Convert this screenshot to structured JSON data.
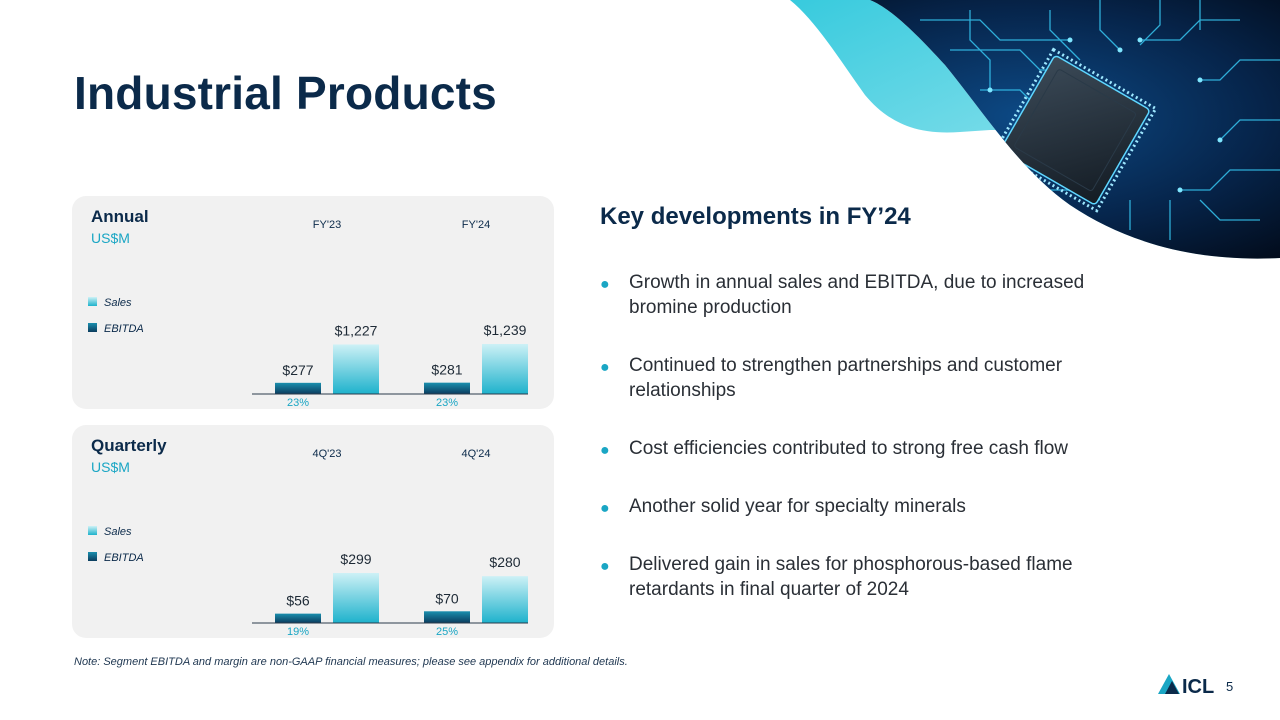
{
  "title": "Industrial Products",
  "hero_image": "circuit-board-chip-image",
  "colors": {
    "navy": "#0b2a4a",
    "accent": "#1aa6c4",
    "sales_top": "#cdf1f6",
    "sales_bottom": "#1eb2cc",
    "ebitda_top": "#1a8fae",
    "ebitda_bottom": "#0b3c5e",
    "panel_bg": "#f1f1f1"
  },
  "chart_data": [
    {
      "type": "bar",
      "title": "Annual",
      "unit": "US$M",
      "categories": [
        "FY'23",
        "FY'24"
      ],
      "series": [
        {
          "name": "EBITDA",
          "values": [
            277,
            281
          ],
          "labels": [
            "$277",
            "$281"
          ]
        },
        {
          "name": "Sales",
          "values": [
            1227,
            1239
          ],
          "labels": [
            "$1,227",
            "$1,239"
          ]
        }
      ],
      "margins": [
        "23%",
        "23%"
      ],
      "ylim": [
        0,
        1239
      ],
      "legend": [
        "Sales",
        "EBITDA"
      ],
      "legend_position": "left"
    },
    {
      "type": "bar",
      "title": "Quarterly",
      "unit": "US$M",
      "categories": [
        "4Q'23",
        "4Q'24"
      ],
      "series": [
        {
          "name": "EBITDA",
          "values": [
            56,
            70
          ],
          "labels": [
            "$56",
            "$70"
          ]
        },
        {
          "name": "Sales",
          "values": [
            299,
            280
          ],
          "labels": [
            "$299",
            "$280"
          ]
        }
      ],
      "margins": [
        "19%",
        "25%"
      ],
      "ylim": [
        0,
        299
      ],
      "legend": [
        "Sales",
        "EBITDA"
      ],
      "legend_position": "left"
    }
  ],
  "developments": {
    "title": "Key developments in FY’24",
    "items": [
      "Growth in annual sales and EBITDA, due to increased bromine production",
      "Continued to strengthen partnerships and customer relationships",
      "Cost efficiencies contributed to strong free cash flow",
      "Another solid year for specialty minerals",
      "Delivered gain in sales for phosphorous-based flame retardants in final quarter of 2024"
    ]
  },
  "note": "Note: Segment EBITDA and margin are non-GAAP financial measures; please see appendix for additional details.",
  "logo_text": "ICL",
  "page_number": "5"
}
